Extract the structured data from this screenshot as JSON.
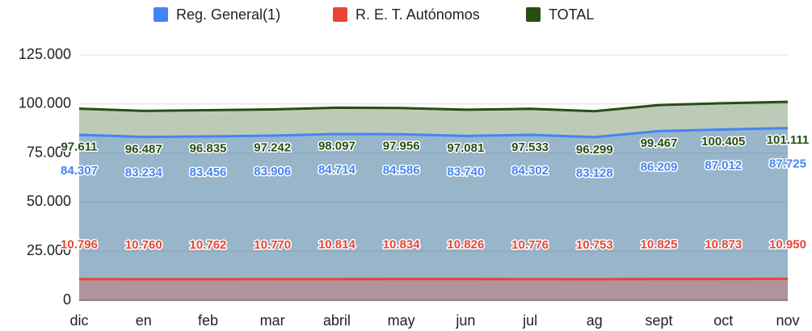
{
  "chart_data": {
    "type": "area",
    "categories": [
      "dic",
      "en",
      "feb",
      "mar",
      "abril",
      "may",
      "jun",
      "jul",
      "ag",
      "sept",
      "oct",
      "nov"
    ],
    "series": [
      {
        "name": "Reg. General(1)",
        "color": "#4285f4",
        "values": [
          84307,
          83234,
          83456,
          83906,
          84714,
          84586,
          83740,
          84302,
          83128,
          86209,
          87012,
          87725
        ],
        "value_labels": [
          "84.307",
          "83.234",
          "83.456",
          "83.906",
          "84.714",
          "84.586",
          "83.740",
          "84.302",
          "83.128",
          "86.209",
          "87.012",
          "87.725"
        ]
      },
      {
        "name": "R. E. T. Autónomos",
        "color": "#ea4335",
        "values": [
          10796,
          10760,
          10762,
          10770,
          10814,
          10834,
          10826,
          10776,
          10753,
          10825,
          10873,
          10950
        ],
        "value_labels": [
          "10.796",
          "10.760",
          "10.762",
          "10.770",
          "10.814",
          "10.834",
          "10.826",
          "10.776",
          "10.753",
          "10.825",
          "10.873",
          "10.950"
        ]
      },
      {
        "name": "TOTAL",
        "color": "#274e13",
        "values": [
          97611,
          96487,
          96835,
          97242,
          98097,
          97956,
          97081,
          97533,
          96299,
          99467,
          100405,
          101111
        ],
        "value_labels": [
          "97.611",
          "96.487",
          "96.835",
          "97.242",
          "98.097",
          "97.956",
          "97.081",
          "97.533",
          "96.299",
          "99.467",
          "100.405",
          "101.111"
        ]
      }
    ],
    "ylim": [
      0,
      125000
    ],
    "yticks": [
      0,
      {
        "value": 25000,
        "label": "25.000"
      },
      {
        "value": 50000,
        "label": "50.000"
      },
      {
        "value": 75000,
        "label": "75.000"
      },
      {
        "value": 100000,
        "label": "100.000"
      },
      {
        "value": 125000,
        "label": "125.000"
      }
    ],
    "grid": true,
    "legend": "top"
  }
}
